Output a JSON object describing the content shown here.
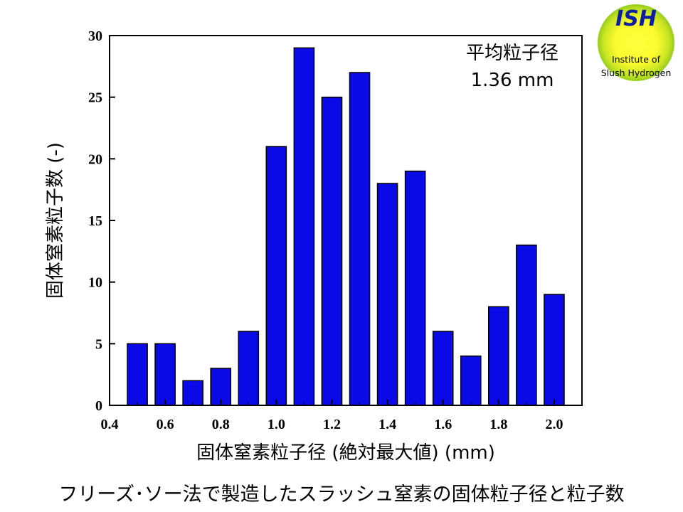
{
  "chart_data": {
    "type": "bar",
    "categories": [
      "0.5",
      "0.6",
      "0.7",
      "0.8",
      "0.9",
      "1.0",
      "1.1",
      "1.2",
      "1.3",
      "1.4",
      "1.5",
      "1.6",
      "1.7",
      "1.8",
      "1.9",
      "2.0"
    ],
    "x": [
      0.5,
      0.6,
      0.7,
      0.8,
      0.9,
      1.0,
      1.1,
      1.2,
      1.3,
      1.4,
      1.5,
      1.6,
      1.7,
      1.8,
      1.9,
      2.0
    ],
    "values": [
      5,
      5,
      2,
      3,
      6,
      21,
      29,
      25,
      27,
      18,
      19,
      6,
      4,
      8,
      13,
      9
    ],
    "xlabel": "固体窒素粒子径 (絶対最大値) (mm)",
    "ylabel": "固体窒素粒子数 (-)",
    "xlim": [
      0.4,
      2.1
    ],
    "ylim": [
      0,
      30
    ],
    "xticks": [
      "0.4",
      "0.6",
      "0.8",
      "1.0",
      "1.2",
      "1.4",
      "1.6",
      "1.8",
      "2.0"
    ],
    "yticks": [
      "0",
      "5",
      "10",
      "15",
      "20",
      "25",
      "30"
    ],
    "annotation": [
      "平均粒子径",
      "1.36 mm"
    ],
    "bar_color": "#0a0ae6",
    "grid": false
  },
  "caption": "フリーズ･ソー法で製造したスラッシュ窒素の固体粒子径と粒子数",
  "logo": {
    "title": "ISH",
    "line1": "Institute of",
    "line2": "Slush Hydrogen",
    "colors": {
      "outer": "#9dd21e",
      "inner": "#ffff33",
      "title": "#0d1f9e"
    }
  }
}
